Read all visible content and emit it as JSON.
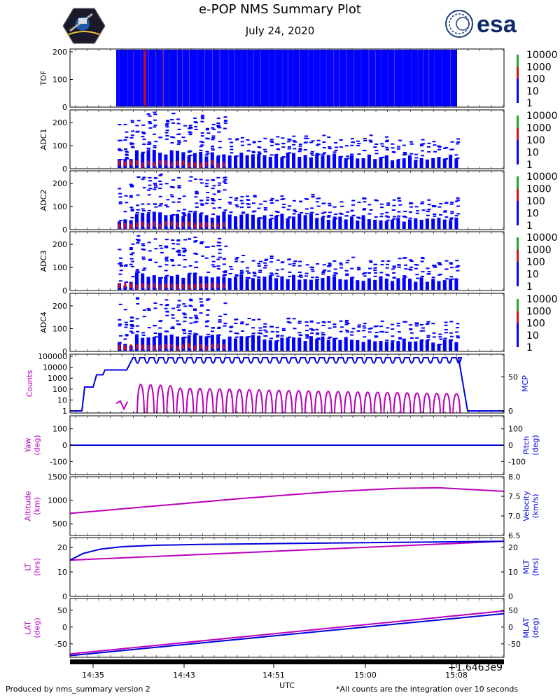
{
  "header": {
    "title": "e-POP NMS Summary Plot",
    "date": "July 24, 2020",
    "esa_logo_text": "esa"
  },
  "footer": {
    "left_note": "Produced by nms_summary version 2",
    "right_note": "*All counts are the integration over 10 seconds",
    "offset_label": "+1.6463e9"
  },
  "colors": {
    "low": "#0000ff",
    "mid": "#cc1020",
    "high": "#22aa22",
    "magenta": "#bb00bb",
    "blue": "#0000dd"
  },
  "chart_data": [
    {
      "type": "heatmap",
      "ylabel": "TOF",
      "y_ticks": [
        "0",
        "100",
        "200"
      ],
      "ylim": [
        0,
        210
      ],
      "colorbar": {
        "label_ticks": [
          "10000",
          "1000",
          "100",
          "10",
          "1"
        ]
      }
    },
    {
      "type": "heatmap",
      "ylabel": "ADC1",
      "y_ticks": [
        "0",
        "100",
        "200"
      ],
      "ylim": [
        0,
        255
      ],
      "colorbar": {
        "label_ticks": [
          "10000",
          "1000",
          "100",
          "10",
          "1"
        ]
      }
    },
    {
      "type": "heatmap",
      "ylabel": "ADC2",
      "y_ticks": [
        "0",
        "100",
        "200"
      ],
      "ylim": [
        0,
        255
      ],
      "colorbar": {
        "label_ticks": [
          "10000",
          "1000",
          "100",
          "10",
          "1"
        ]
      }
    },
    {
      "type": "heatmap",
      "ylabel": "ADC3",
      "y_ticks": [
        "0",
        "100",
        "200"
      ],
      "ylim": [
        0,
        255
      ],
      "colorbar": {
        "label_ticks": [
          "10000",
          "1000",
          "100",
          "10",
          "1"
        ]
      }
    },
    {
      "type": "heatmap",
      "ylabel": "ADC4",
      "y_ticks": [
        "0",
        "100",
        "200"
      ],
      "ylim": [
        0,
        255
      ],
      "colorbar": {
        "label_ticks": [
          "10000",
          "1000",
          "100",
          "10",
          "1"
        ]
      }
    },
    {
      "type": "line",
      "ylabel_left": "Counts",
      "ylabel_right": "MCP",
      "left_ticks": [
        "1",
        "10",
        "100",
        "1000",
        "10000",
        "100000"
      ],
      "right_ticks": [
        "0",
        "50"
      ],
      "mcp_levels": [
        0,
        35,
        53,
        60,
        70,
        78
      ],
      "series": [
        {
          "name": "Counts",
          "color": "magenta",
          "scale": "log",
          "range": [
            1,
            10000
          ]
        },
        {
          "name": "MCP",
          "color": "blue",
          "range": [
            0,
            80
          ]
        }
      ]
    },
    {
      "type": "line",
      "ylabel_left": "Yaw\n(deg)",
      "ylabel_right": "Pitch\n(deg)",
      "left_ticks": [
        "-100",
        "0",
        "100"
      ],
      "right_ticks": [
        "-100",
        "0",
        "100"
      ],
      "ylim": [
        -180,
        180
      ],
      "series": [
        {
          "name": "Yaw",
          "color": "magenta",
          "values": [
            0,
            0
          ]
        },
        {
          "name": "Pitch",
          "color": "blue",
          "values": [
            0,
            0
          ]
        }
      ]
    },
    {
      "type": "line",
      "ylabel_left": "Altitude\n(km)",
      "ylabel_right": "Velocity\n(km/s)",
      "left_ticks": [
        "500",
        "1000",
        "1500"
      ],
      "right_ticks": [
        "6.5",
        "7.0",
        "7.5",
        "8.0"
      ],
      "ylim": [
        250,
        1500
      ],
      "ylim_right": [
        6.5,
        8.0
      ],
      "series": [
        {
          "name": "Altitude",
          "color": "magenta",
          "x": [
            0,
            0.2,
            0.4,
            0.6,
            0.75,
            0.85,
            1.0
          ],
          "values": [
            720,
            880,
            1040,
            1180,
            1250,
            1265,
            1190
          ]
        }
      ]
    },
    {
      "type": "line",
      "ylabel_left": "LT\n(hrs)",
      "ylabel_right": "MLT\n(hrs)",
      "left_ticks": [
        "0",
        "10",
        "20"
      ],
      "right_ticks": [
        "0",
        "10",
        "20"
      ],
      "ylim": [
        0,
        24
      ],
      "series": [
        {
          "name": "LT",
          "color": "magenta",
          "values": [
            14.8,
            22.5
          ]
        },
        {
          "name": "MLT",
          "color": "blue",
          "x": [
            0,
            0.03,
            0.07,
            0.12,
            0.2,
            0.3,
            0.5,
            1.0
          ],
          "values": [
            14.8,
            17.5,
            19.3,
            20.3,
            20.9,
            21.2,
            21.6,
            22.5
          ]
        }
      ]
    },
    {
      "type": "line",
      "ylabel_left": "LAT\n(deg)",
      "ylabel_right": "MLAT\n(deg)",
      "left_ticks": [
        "-50",
        "0",
        "50"
      ],
      "right_ticks": [
        "-50",
        "0",
        "50"
      ],
      "ylim": [
        -90,
        85
      ],
      "series": [
        {
          "name": "LAT",
          "color": "magenta",
          "values": [
            -80,
            48
          ]
        },
        {
          "name": "MLAT",
          "color": "blue",
          "values": [
            -85,
            40
          ]
        }
      ],
      "xlabel": "UTC",
      "x_ticks": [
        "14:35",
        "14:43",
        "14:51",
        "15:00",
        "15:08"
      ]
    }
  ]
}
